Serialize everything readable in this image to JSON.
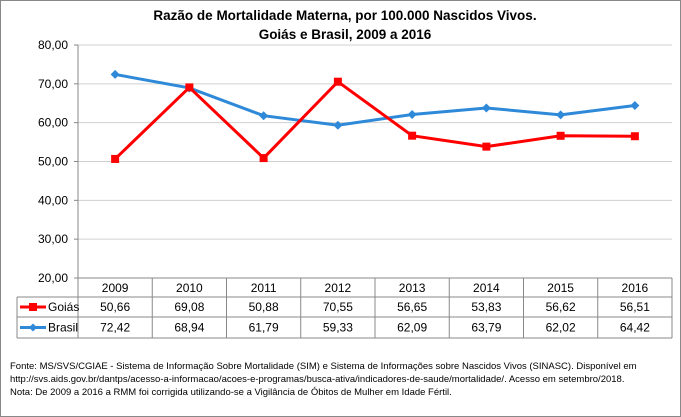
{
  "chart_data": {
    "type": "line",
    "title": "Razão de Mortalidade Materna, por 100.000 Nascidos Vivos.",
    "subtitle": "Goiás e Brasil, 2009 a 2016",
    "categories": [
      "2009",
      "2010",
      "2011",
      "2012",
      "2013",
      "2014",
      "2015",
      "2016"
    ],
    "ylim": [
      20,
      80
    ],
    "yticks": [
      "20,00",
      "30,00",
      "40,00",
      "50,00",
      "60,00",
      "70,00",
      "80,00"
    ],
    "grid": true,
    "legend": "data-table",
    "series": [
      {
        "name": "Goiás",
        "color": "#ff0000",
        "marker": "square",
        "values": [
          50.66,
          69.08,
          50.88,
          70.55,
          56.65,
          53.83,
          56.62,
          56.51
        ],
        "labels": [
          "50,66",
          "69,08",
          "50,88",
          "70,55",
          "56,65",
          "53,83",
          "56,62",
          "56,51"
        ]
      },
      {
        "name": "Brasil",
        "color": "#2e8ad8",
        "marker": "diamond",
        "values": [
          72.42,
          68.94,
          61.79,
          59.33,
          62.09,
          63.79,
          62.02,
          64.42
        ],
        "labels": [
          "72,42",
          "68,94",
          "61,79",
          "59,33",
          "62,09",
          "63,79",
          "62,02",
          "64,42"
        ]
      }
    ]
  },
  "footer": [
    "Fonte: MS/SVS/CGIAE - Sistema de Informação Sobre Mortalidade (SIM) e Sistema de Informações sobre Nascidos Vivos (SINASC). Disponível em",
    "http://svs.aids.gov.br/dantps/acesso-a-informacao/acoes-e-programas/busca-ativa/indicadores-de-saude/mortalidade/. Acesso em setembro/2018.",
    "Nota: De 2009 a 2016 a RMM foi corrigida utilizando-se a Vigilância de Óbitos de Mulher em Idade Fértil."
  ]
}
